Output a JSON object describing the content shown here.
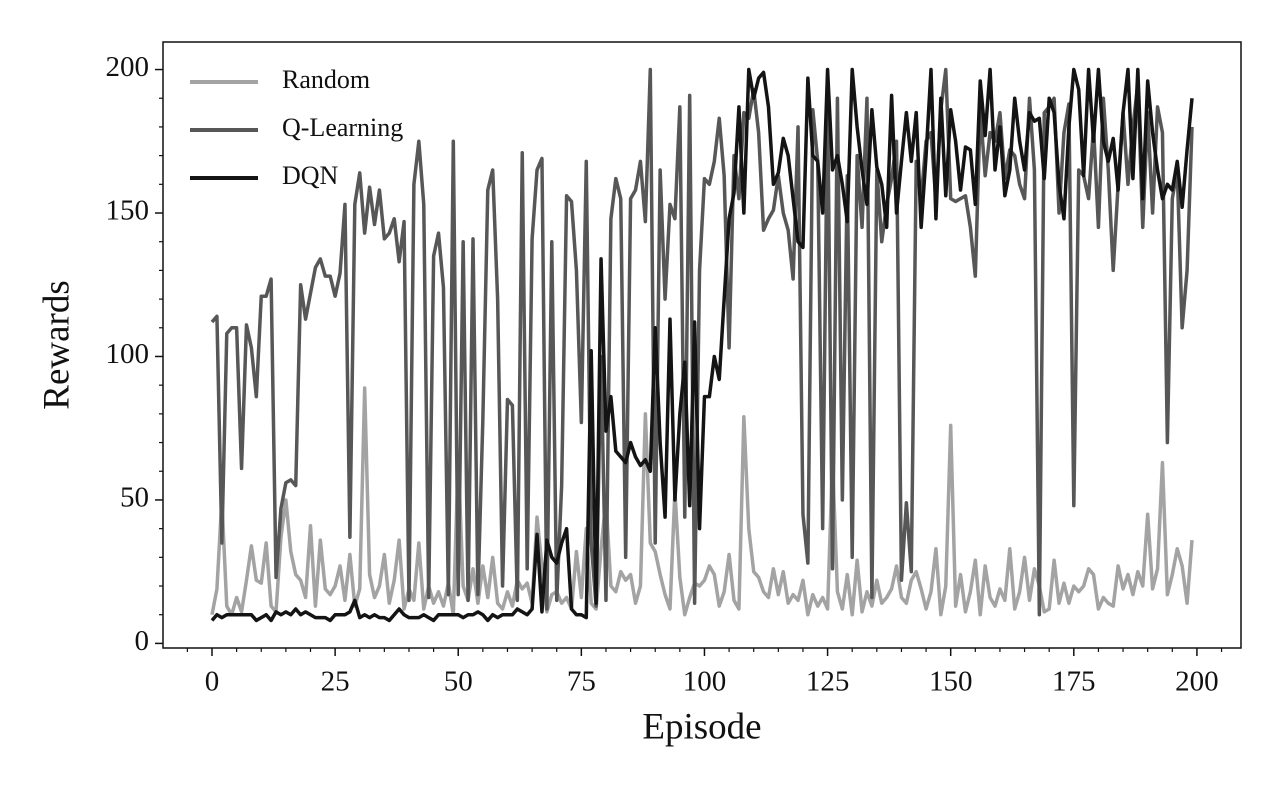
{
  "chart_data": {
    "type": "line",
    "xlabel": "Episode",
    "ylabel": "Rewards",
    "x": [
      0,
      1,
      2,
      3,
      4,
      5,
      6,
      7,
      8,
      9,
      10,
      11,
      12,
      13,
      14,
      15,
      16,
      17,
      18,
      19,
      20,
      21,
      22,
      23,
      24,
      25,
      26,
      27,
      28,
      29,
      30,
      31,
      32,
      33,
      34,
      35,
      36,
      37,
      38,
      39,
      40,
      41,
      42,
      43,
      44,
      45,
      46,
      47,
      48,
      49,
      50,
      51,
      52,
      53,
      54,
      55,
      56,
      57,
      58,
      59,
      60,
      61,
      62,
      63,
      64,
      65,
      66,
      67,
      68,
      69,
      70,
      71,
      72,
      73,
      74,
      75,
      76,
      77,
      78,
      79,
      80,
      81,
      82,
      83,
      84,
      85,
      86,
      87,
      88,
      89,
      90,
      91,
      92,
      93,
      94,
      95,
      96,
      97,
      98,
      99,
      100,
      101,
      102,
      103,
      104,
      105,
      106,
      107,
      108,
      109,
      110,
      111,
      112,
      113,
      114,
      115,
      116,
      117,
      118,
      119,
      120,
      121,
      122,
      123,
      124,
      125,
      126,
      127,
      128,
      129,
      130,
      131,
      132,
      133,
      134,
      135,
      136,
      137,
      138,
      139,
      140,
      141,
      142,
      143,
      144,
      145,
      146,
      147,
      148,
      149,
      150,
      151,
      152,
      153,
      154,
      155,
      156,
      157,
      158,
      159,
      160,
      161,
      162,
      163,
      164,
      165,
      166,
      167,
      168,
      169,
      170,
      171,
      172,
      173,
      174,
      175,
      176,
      177,
      178,
      179,
      180,
      181,
      182,
      183,
      184,
      185,
      186,
      187,
      188,
      189,
      190,
      191,
      192,
      193,
      194,
      195,
      196,
      197,
      198,
      199
    ],
    "series": [
      {
        "name": "Random",
        "color": "#a3a3a3",
        "values": [
          10,
          19,
          50,
          13,
          10,
          16,
          11,
          22,
          34,
          22,
          21,
          35,
          13,
          11,
          37,
          50,
          32,
          24,
          22,
          16,
          41,
          13,
          36,
          19,
          17,
          20,
          27,
          15,
          31,
          13,
          19,
          89,
          24,
          16,
          20,
          31,
          14,
          22,
          36,
          12,
          19,
          15,
          35,
          12,
          20,
          14,
          18,
          13,
          21,
          10,
          64,
          20,
          15,
          26,
          14,
          27,
          16,
          30,
          14,
          12,
          18,
          13,
          22,
          19,
          21,
          14,
          44,
          27,
          11,
          17,
          18,
          14,
          16,
          12,
          32,
          16,
          40,
          14,
          12,
          33,
          50,
          20,
          18,
          25,
          22,
          24,
          14,
          20,
          80,
          35,
          32,
          24,
          17,
          12,
          53,
          23,
          10,
          16,
          21,
          20,
          22,
          27,
          24,
          13,
          18,
          31,
          15,
          12,
          79,
          40,
          25,
          23,
          18,
          16,
          26,
          17,
          25,
          14,
          17,
          15,
          22,
          10,
          17,
          13,
          16,
          12,
          64,
          18,
          12,
          24,
          10,
          29,
          11,
          18,
          13,
          22,
          14,
          16,
          19,
          27,
          16,
          14,
          22,
          25,
          19,
          12,
          18,
          33,
          10,
          20,
          76,
          13,
          24,
          11,
          18,
          29,
          10,
          27,
          16,
          13,
          19,
          15,
          33,
          12,
          18,
          30,
          15,
          26,
          20,
          11,
          12,
          29,
          14,
          21,
          14,
          20,
          18,
          20,
          26,
          24,
          12,
          16,
          14,
          13,
          27,
          19,
          24,
          17,
          25,
          20,
          45,
          19,
          26,
          63,
          17,
          24,
          33,
          27,
          14,
          36
        ]
      },
      {
        "name": "Q-Learning",
        "color": "#575757",
        "values": [
          112,
          114,
          35,
          108,
          110,
          110,
          61,
          111,
          103,
          86,
          121,
          121,
          127,
          23,
          47,
          56,
          57,
          55,
          125,
          113,
          122,
          131,
          134,
          128,
          128,
          121,
          129,
          153,
          37,
          153,
          164,
          143,
          159,
          146,
          158,
          141,
          143,
          148,
          133,
          147,
          15,
          160,
          175,
          153,
          16,
          135,
          143,
          124,
          17,
          175,
          17,
          140,
          15,
          141,
          17,
          78,
          158,
          165,
          120,
          20,
          85,
          83,
          15,
          171,
          26,
          141,
          165,
          169,
          12,
          140,
          15,
          55,
          156,
          154,
          130,
          77,
          168,
          35,
          13,
          100,
          15,
          148,
          162,
          155,
          30,
          155,
          158,
          168,
          147,
          200,
          35,
          165,
          120,
          153,
          148,
          187,
          44,
          191,
          14,
          130,
          162,
          160,
          168,
          183,
          163,
          103,
          170,
          155,
          185,
          183,
          193,
          178,
          144,
          148,
          151,
          163,
          150,
          144,
          127,
          180,
          45,
          28,
          186,
          168,
          40,
          191,
          26,
          190,
          50,
          163,
          30,
          170,
          145,
          190,
          16,
          165,
          140,
          153,
          162,
          175,
          22,
          49,
          25,
          168,
          155,
          175,
          178,
          154,
          186,
          200,
          155,
          154,
          155,
          156,
          145,
          128,
          186,
          163,
          178,
          175,
          185,
          162,
          172,
          170,
          160,
          155,
          190,
          165,
          10,
          185,
          187,
          190,
          150,
          178,
          188,
          48,
          165,
          163,
          155,
          180,
          145,
          190,
          165,
          130,
          160,
          185,
          160,
          180,
          195,
          145,
          185,
          150,
          187,
          178,
          70,
          155,
          165,
          110,
          130,
          180
        ]
      },
      {
        "name": "DQN",
        "color": "#141414",
        "values": [
          8,
          10,
          9,
          10,
          10,
          10,
          10,
          10,
          10,
          8,
          9,
          10,
          8,
          11,
          10,
          11,
          10,
          12,
          10,
          11,
          10,
          9,
          9,
          9,
          8,
          10,
          10,
          10,
          11,
          15,
          9,
          10,
          9,
          10,
          9,
          9,
          8,
          10,
          12,
          10,
          9,
          9,
          9,
          10,
          9,
          8,
          10,
          10,
          10,
          10,
          10,
          9,
          10,
          10,
          11,
          10,
          8,
          10,
          9,
          10,
          10,
          10,
          12,
          11,
          10,
          12,
          38,
          11,
          36,
          30,
          28,
          35,
          40,
          12,
          10,
          10,
          9,
          102,
          14,
          134,
          74,
          86,
          67,
          65,
          63,
          70,
          65,
          62,
          64,
          60,
          110,
          70,
          44,
          113,
          50,
          80,
          98,
          48,
          112,
          40,
          86,
          86,
          100,
          92,
          120,
          148,
          157,
          187,
          150,
          200,
          190,
          197,
          199,
          187,
          160,
          164,
          176,
          170,
          155,
          140,
          138,
          197,
          170,
          168,
          150,
          200,
          165,
          170,
          160,
          147,
          200,
          180,
          165,
          153,
          186,
          166,
          160,
          145,
          191,
          150,
          168,
          185,
          168,
          185,
          145,
          170,
          200,
          148,
          190,
          156,
          186,
          175,
          158,
          173,
          172,
          153,
          196,
          177,
          200,
          165,
          180,
          156,
          165,
          190,
          175,
          165,
          185,
          182,
          183,
          162,
          190,
          185,
          160,
          148,
          180,
          200,
          193,
          163,
          200,
          175,
          200,
          175,
          168,
          176,
          158,
          185,
          200,
          162,
          200,
          155,
          196,
          178,
          165,
          155,
          160,
          158,
          168,
          152,
          172,
          190
        ]
      }
    ],
    "xlim": [
      -9.95,
      208.95
    ],
    "xticks": [
      0,
      25,
      50,
      75,
      100,
      125,
      150,
      175,
      200
    ],
    "xminorticks": [
      -5,
      5,
      10,
      15,
      20,
      30,
      35,
      40,
      45,
      55,
      60,
      65,
      70,
      80,
      85,
      90,
      95,
      105,
      110,
      115,
      120,
      130,
      135,
      140,
      145,
      155,
      160,
      165,
      170,
      180,
      185,
      190,
      195,
      205
    ],
    "ylim": [
      -1.6,
      209.6
    ],
    "yticks": [
      0,
      50,
      100,
      150,
      200
    ],
    "yminorticks": [
      10,
      20,
      30,
      40,
      60,
      70,
      80,
      90,
      110,
      120,
      130,
      140,
      160,
      170,
      180,
      190
    ],
    "legend": "upper left",
    "grid": false
  }
}
